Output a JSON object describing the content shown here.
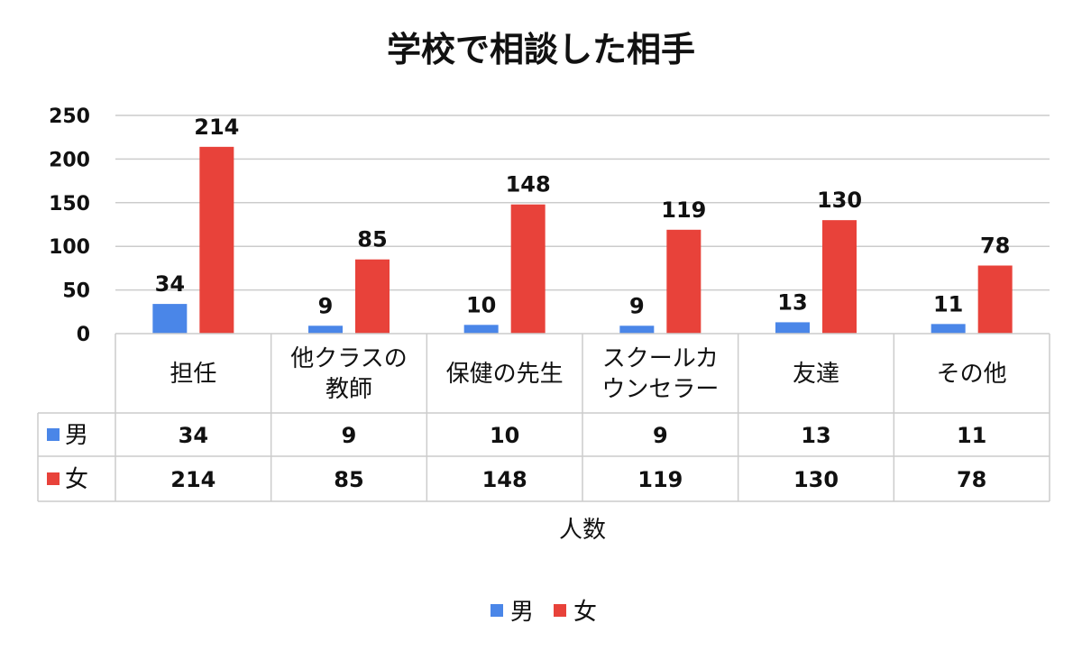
{
  "chart_data": {
    "type": "bar",
    "title": "学校で相談した相手",
    "xlabel": "人数",
    "ylabel": "",
    "ylim": [
      0,
      250
    ],
    "yticks": [
      0,
      50,
      100,
      150,
      200,
      250
    ],
    "grid": true,
    "legend": "bottom",
    "categories": [
      [
        "担任"
      ],
      [
        "他クラスの",
        "教師"
      ],
      [
        "保健の先生"
      ],
      [
        "スクールカ",
        "ウンセラー"
      ],
      [
        "友達"
      ],
      [
        "その他"
      ]
    ],
    "series": [
      {
        "name": "男",
        "color": "#4a86e8",
        "values": [
          34,
          9,
          10,
          9,
          13,
          11
        ]
      },
      {
        "name": "女",
        "color": "#e8423a",
        "values": [
          214,
          85,
          148,
          119,
          130,
          78
        ]
      }
    ],
    "data_table": true
  }
}
